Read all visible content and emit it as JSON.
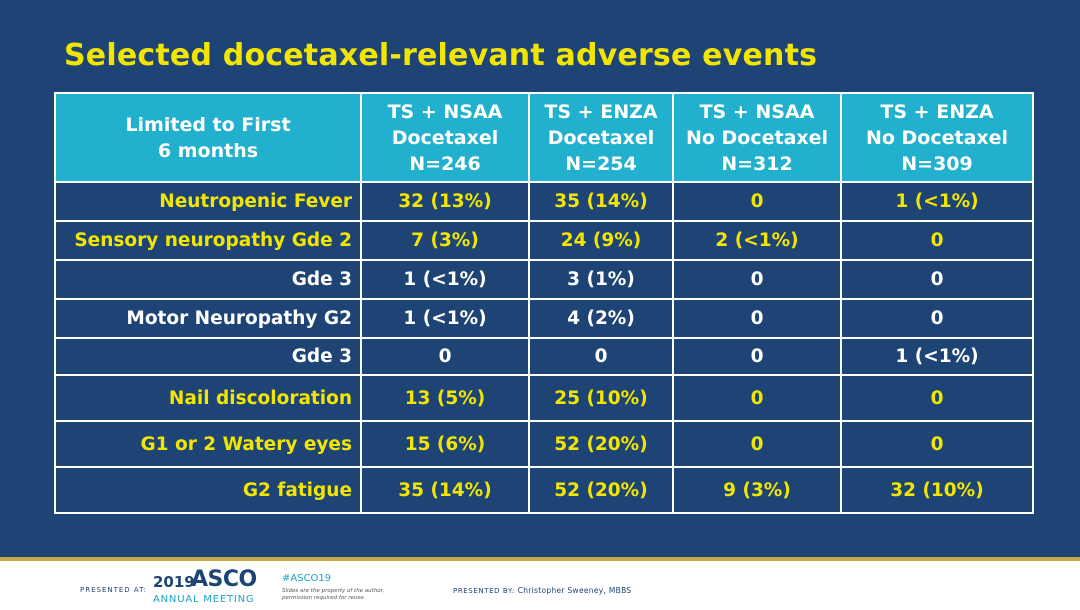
{
  "title": "Selected docetaxel-relevant adverse events",
  "colors": {
    "background": "#1d4474",
    "header_fill": "#21b0cd",
    "title_yellow": "#f2e600",
    "row_label_white": "#ffffff",
    "footer_gold": "#c7a84a"
  },
  "table": {
    "header": [
      [
        "Limited to First",
        "6 months"
      ],
      [
        "TS + NSAA",
        "Docetaxel",
        "N=246"
      ],
      [
        "TS + ENZA",
        "Docetaxel",
        "N=254"
      ],
      [
        "TS + NSAA",
        "No Docetaxel",
        "N=312"
      ],
      [
        "TS + ENZA",
        "No Docetaxel",
        "N=309"
      ]
    ],
    "rows": [
      {
        "label": "Neutropenic Fever",
        "highlight": true,
        "values": [
          "32 (13%)",
          "35 (14%)",
          "0",
          "1 (<1%)"
        ]
      },
      {
        "label": "Sensory neuropathy Gde 2",
        "highlight": true,
        "values": [
          "7 (3%)",
          "24 (9%)",
          "2 (<1%)",
          "0"
        ]
      },
      {
        "label": "Gde 3",
        "highlight": false,
        "values": [
          "1 (<1%)",
          "3 (1%)",
          "0",
          "0"
        ]
      },
      {
        "label": "Motor Neuropathy G2",
        "highlight": false,
        "values": [
          "1 (<1%)",
          "4 (2%)",
          "0",
          "0"
        ]
      },
      {
        "label": "Gde 3",
        "highlight": false,
        "values": [
          "0",
          "0",
          "0",
          "1 (<1%)"
        ]
      },
      {
        "label": "Nail discoloration",
        "highlight": true,
        "values": [
          "13 (5%)",
          "25 (10%)",
          "0",
          "0"
        ]
      },
      {
        "label": "G1 or 2 Watery eyes",
        "highlight": true,
        "values": [
          "15 (6%)",
          "52 (20%)",
          "0",
          "0"
        ]
      },
      {
        "label": "G2 fatigue",
        "highlight": true,
        "values": [
          "35 (14%)",
          "52 (20%)",
          "9 (3%)",
          "32 (10%)"
        ]
      }
    ]
  },
  "footer": {
    "presented_at": "PRESENTED AT:",
    "logo_year": "2019",
    "logo_name": "ASCO",
    "logo_sub": "ANNUAL MEETING",
    "hashtag": "#ASCO19",
    "disclaimer": "Slides are the property of the author, permission required for reuse.",
    "presented_by_label": "PRESENTED BY:",
    "presenter": "Christopher Sweeney, MBBS"
  }
}
